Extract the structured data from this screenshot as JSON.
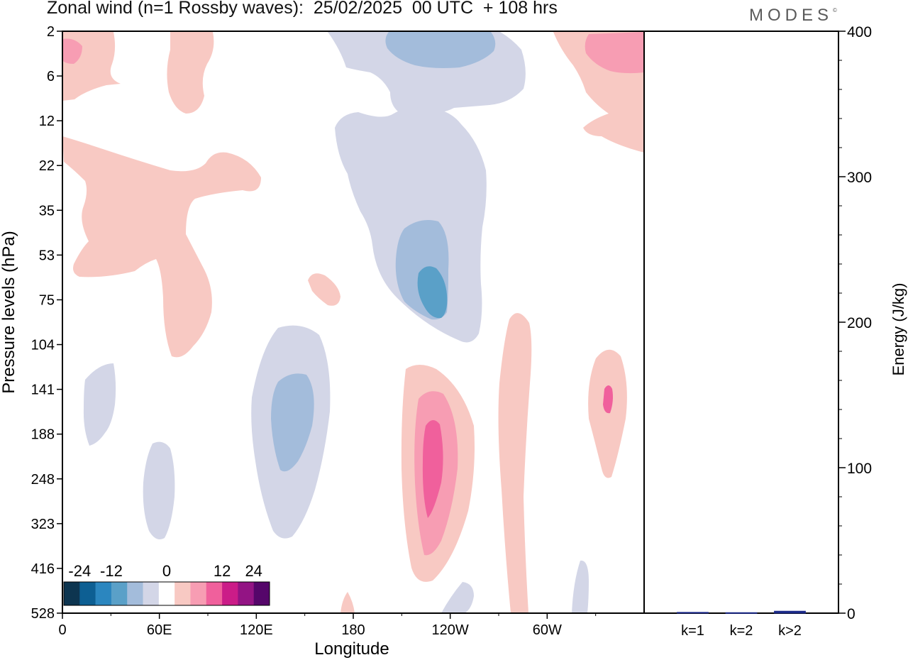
{
  "header": {
    "title": "Zonal wind (n=1 Rossby waves):  25/02/2025  00 UTC  + 108 hrs",
    "brand": "MODES",
    "brand_mark": "©"
  },
  "colors": {
    "neg_4": "#5aa0c8",
    "neg_3": "#a3bcdb",
    "neg_2": "#d3d6e7",
    "pos_2": "#f8c9c3",
    "pos_3": "#f79db3",
    "pos_4": "#f0609c",
    "energy_bar": "#1c2a8a",
    "frame": "#000000"
  },
  "chart_data": [
    {
      "type": "contour",
      "title": "Zonal wind (n=1 Rossby waves):  25/02/2025  00 UTC  + 108 hrs",
      "xlabel": "Longitude",
      "ylabel": "Pressure levels (hPa)",
      "x_ticks": [
        "0",
        "60E",
        "120E",
        "180",
        "120W",
        "60W"
      ],
      "x_tick_values": [
        0,
        60,
        120,
        180,
        240,
        300
      ],
      "xlim": [
        0,
        360
      ],
      "y_ticks": [
        "2",
        "6",
        "12",
        "22",
        "35",
        "53",
        "75",
        "104",
        "141",
        "188",
        "248",
        "323",
        "416",
        "528"
      ],
      "colorbar": {
        "labels": [
          "-24",
          "-12",
          "0",
          "12",
          "24"
        ],
        "colors": [
          "#0d3550",
          "#0d5f93",
          "#2b86bf",
          "#5aa0c8",
          "#a3bcdb",
          "#d3d6e7",
          "#ffffff",
          "#f8c9c3",
          "#f79db3",
          "#f0609c",
          "#cb1c88",
          "#931484",
          "#55066a"
        ]
      },
      "features": [
        {
          "sign": "positive",
          "longitude": 6,
          "pressure": "2-6",
          "level": 3
        },
        {
          "sign": "positive",
          "longitude": 35,
          "pressure": "22-104",
          "level": 2
        },
        {
          "sign": "positive",
          "longitude": 80,
          "pressure": "2-12",
          "level": 2
        },
        {
          "sign": "positive",
          "longitude": 162,
          "pressure": "53-75",
          "level": 2
        },
        {
          "sign": "positive",
          "longitude": 227,
          "pressure": "141-416",
          "level": 4
        },
        {
          "sign": "positive",
          "longitude": 280,
          "pressure": "75-528",
          "level": 2
        },
        {
          "sign": "positive",
          "longitude": 340,
          "pressure": "104-248",
          "level": 4
        },
        {
          "sign": "positive",
          "longitude": 350,
          "pressure": "2-22",
          "level": 3
        },
        {
          "sign": "negative",
          "longitude": 220,
          "pressure": "2-6",
          "level": 3
        },
        {
          "sign": "negative",
          "longitude": 232,
          "pressure": "35-104",
          "level": 4
        },
        {
          "sign": "negative",
          "longitude": 138,
          "pressure": "141-248",
          "level": 3
        },
        {
          "sign": "negative",
          "longitude": 25,
          "pressure": "104-188",
          "level": 2
        },
        {
          "sign": "negative",
          "longitude": 61,
          "pressure": "188-323",
          "level": 2
        }
      ]
    },
    {
      "type": "bar",
      "ylabel": "Energy (J/kg)",
      "categories": [
        "k=1",
        "k=2",
        "k>2"
      ],
      "values": [
        0.6,
        0.4,
        1.4
      ],
      "ylim": [
        0,
        400
      ],
      "y_ticks": [
        "0",
        "100",
        "200",
        "300",
        "400"
      ]
    }
  ]
}
